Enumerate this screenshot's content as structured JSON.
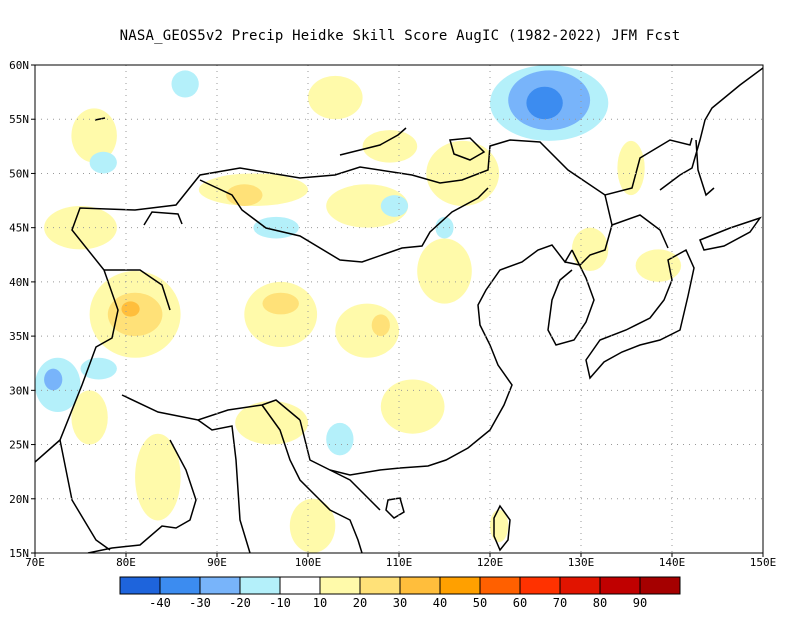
{
  "title": "NASA_GEOS5v2 Precip Heidke Skill Score AugIC (1982-2022) JFM Fcst",
  "axes": {
    "lon_range": [
      70,
      150
    ],
    "lat_range": [
      15,
      60
    ],
    "lon_ticks": [
      "70E",
      "80E",
      "90E",
      "100E",
      "110E",
      "120E",
      "130E",
      "140E",
      "150E"
    ],
    "lat_ticks": [
      "15N",
      "20N",
      "25N",
      "30N",
      "35N",
      "40N",
      "45N",
      "50N",
      "55N",
      "60N"
    ],
    "grid": true
  },
  "colorbar": {
    "colors": [
      "#1e64dc",
      "#3c8cf0",
      "#78b4fa",
      "#b4f0fa",
      "#ffffff",
      "#fffaaa",
      "#ffe178",
      "#ffbe3c",
      "#ffa000",
      "#ff6000",
      "#ff3200",
      "#e11400",
      "#c00000",
      "#a50000"
    ],
    "labels": [
      "-40",
      "-30",
      "-20",
      "-10",
      "10",
      "20",
      "30",
      "40",
      "50",
      "60",
      "70",
      "80",
      "90"
    ]
  },
  "regions": [
    {
      "kind": "pos",
      "level": 1,
      "lon": [
        71,
        79
      ],
      "lat": [
        43,
        47
      ]
    },
    {
      "kind": "pos",
      "level": 1,
      "lon": [
        76,
        86
      ],
      "lat": [
        33,
        41
      ]
    },
    {
      "kind": "pos",
      "level": 2,
      "lon": [
        78,
        84
      ],
      "lat": [
        35,
        39
      ]
    },
    {
      "kind": "pos",
      "level": 3,
      "lon": [
        79.5,
        81.5
      ],
      "lat": [
        36.8,
        38.2
      ]
    },
    {
      "kind": "pos",
      "level": 1,
      "lon": [
        88,
        100
      ],
      "lat": [
        47,
        50
      ]
    },
    {
      "kind": "pos",
      "level": 2,
      "lon": [
        91,
        95
      ],
      "lat": [
        47,
        49
      ]
    },
    {
      "kind": "pos",
      "level": 1,
      "lon": [
        93,
        101
      ],
      "lat": [
        34,
        40
      ]
    },
    {
      "kind": "pos",
      "level": 2,
      "lon": [
        95,
        99
      ],
      "lat": [
        37,
        39
      ]
    },
    {
      "kind": "pos",
      "level": 1,
      "lon": [
        102,
        111
      ],
      "lat": [
        45,
        49
      ]
    },
    {
      "kind": "pos",
      "level": 1,
      "lon": [
        103,
        110
      ],
      "lat": [
        33,
        38
      ]
    },
    {
      "kind": "pos",
      "level": 2,
      "lon": [
        107,
        109
      ],
      "lat": [
        35,
        37
      ]
    },
    {
      "kind": "pos",
      "level": 1,
      "lon": [
        108,
        115
      ],
      "lat": [
        26,
        31
      ]
    },
    {
      "kind": "pos",
      "level": 1,
      "lon": [
        92,
        100
      ],
      "lat": [
        25,
        29
      ]
    },
    {
      "kind": "pos",
      "level": 1,
      "lon": [
        112,
        118
      ],
      "lat": [
        38,
        44
      ]
    },
    {
      "kind": "pos",
      "level": 1,
      "lon": [
        113,
        121
      ],
      "lat": [
        47,
        53
      ]
    },
    {
      "kind": "pos",
      "level": 1,
      "lon": [
        98,
        103
      ],
      "lat": [
        15,
        20
      ]
    },
    {
      "kind": "pos",
      "level": 1,
      "lon": [
        81,
        86
      ],
      "lat": [
        18,
        26
      ]
    },
    {
      "kind": "pos",
      "level": 1,
      "lon": [
        129,
        133
      ],
      "lat": [
        41,
        45
      ]
    },
    {
      "kind": "pos",
      "level": 1,
      "lon": [
        134,
        137
      ],
      "lat": [
        48,
        53
      ]
    },
    {
      "kind": "pos",
      "level": 1,
      "lon": [
        136,
        141
      ],
      "lat": [
        40,
        43
      ]
    },
    {
      "kind": "pos",
      "level": 1,
      "lon": [
        74,
        79
      ],
      "lat": [
        51,
        56
      ]
    },
    {
      "kind": "pos",
      "level": 1,
      "lon": [
        100,
        106
      ],
      "lat": [
        55,
        59
      ]
    },
    {
      "kind": "pos",
      "level": 1,
      "lon": [
        106,
        112
      ],
      "lat": [
        51,
        54
      ]
    },
    {
      "kind": "pos",
      "level": 1,
      "lon": [
        120,
        122
      ],
      "lat": [
        16,
        19
      ]
    },
    {
      "kind": "pos",
      "level": 1,
      "lon": [
        74,
        78
      ],
      "lat": [
        25,
        30
      ]
    },
    {
      "kind": "neg",
      "level": 1,
      "lon": [
        120,
        133
      ],
      "lat": [
        53,
        60
      ]
    },
    {
      "kind": "neg",
      "level": 2,
      "lon": [
        122,
        131
      ],
      "lat": [
        54,
        59.5
      ]
    },
    {
      "kind": "neg",
      "level": 3,
      "lon": [
        124,
        128
      ],
      "lat": [
        55,
        58
      ]
    },
    {
      "kind": "neg",
      "level": 1,
      "lon": [
        85,
        88
      ],
      "lat": [
        57,
        59.5
      ]
    },
    {
      "kind": "neg",
      "level": 1,
      "lon": [
        70,
        75
      ],
      "lat": [
        28,
        33
      ]
    },
    {
      "kind": "neg",
      "level": 2,
      "lon": [
        71,
        73
      ],
      "lat": [
        30,
        32
      ]
    },
    {
      "kind": "neg",
      "level": 1,
      "lon": [
        94,
        99
      ],
      "lat": [
        44,
        46
      ]
    },
    {
      "kind": "neg",
      "level": 1,
      "lon": [
        102,
        105
      ],
      "lat": [
        24,
        27
      ]
    },
    {
      "kind": "neg",
      "level": 1,
      "lon": [
        75,
        79
      ],
      "lat": [
        31,
        33
      ]
    },
    {
      "kind": "neg",
      "level": 1,
      "lon": [
        108,
        111
      ],
      "lat": [
        46,
        48
      ]
    },
    {
      "kind": "neg",
      "level": 1,
      "lon": [
        76,
        79
      ],
      "lat": [
        50,
        52
      ]
    },
    {
      "kind": "neg",
      "level": 1,
      "lon": [
        114,
        116
      ],
      "lat": [
        44,
        46
      ]
    }
  ]
}
